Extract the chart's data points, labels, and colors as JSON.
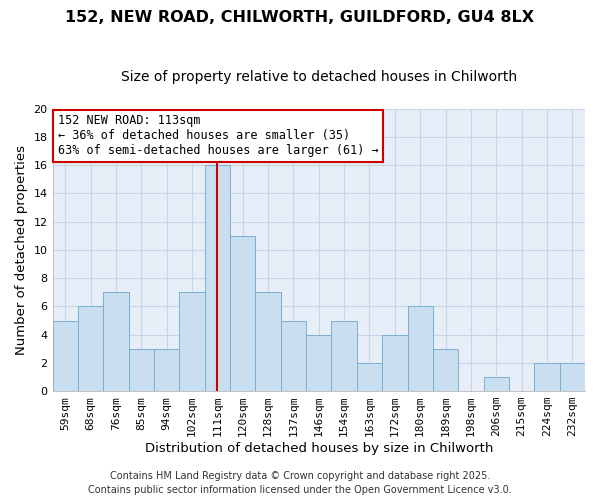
{
  "title": "152, NEW ROAD, CHILWORTH, GUILDFORD, GU4 8LX",
  "subtitle": "Size of property relative to detached houses in Chilworth",
  "xlabel": "Distribution of detached houses by size in Chilworth",
  "ylabel": "Number of detached properties",
  "bar_labels": [
    "59sqm",
    "68sqm",
    "76sqm",
    "85sqm",
    "94sqm",
    "102sqm",
    "111sqm",
    "120sqm",
    "128sqm",
    "137sqm",
    "146sqm",
    "154sqm",
    "163sqm",
    "172sqm",
    "180sqm",
    "189sqm",
    "198sqm",
    "206sqm",
    "215sqm",
    "224sqm",
    "232sqm"
  ],
  "bar_heights": [
    5,
    6,
    7,
    3,
    3,
    7,
    16,
    11,
    7,
    5,
    4,
    5,
    2,
    4,
    6,
    3,
    0,
    1,
    0,
    2,
    2
  ],
  "bar_color": "#c9dff0",
  "bar_edgecolor": "#7bafd4",
  "vline_x": 6,
  "vline_color": "#cc0000",
  "annotation_title": "152 NEW ROAD: 113sqm",
  "annotation_line1": "← 36% of detached houses are smaller (35)",
  "annotation_line2": "63% of semi-detached houses are larger (61) →",
  "annotation_box_edgecolor": "#cc0000",
  "ylim": [
    0,
    20
  ],
  "yticks": [
    0,
    2,
    4,
    6,
    8,
    10,
    12,
    14,
    16,
    18,
    20
  ],
  "footer1": "Contains HM Land Registry data © Crown copyright and database right 2025.",
  "footer2": "Contains public sector information licensed under the Open Government Licence v3.0.",
  "bg_color": "#ffffff",
  "plot_bg_color": "#e8eef8",
  "grid_color": "#c8d4e8",
  "title_fontsize": 11.5,
  "subtitle_fontsize": 10,
  "axis_label_fontsize": 9.5,
  "tick_fontsize": 8,
  "annotation_fontsize": 8.5,
  "footer_fontsize": 7
}
